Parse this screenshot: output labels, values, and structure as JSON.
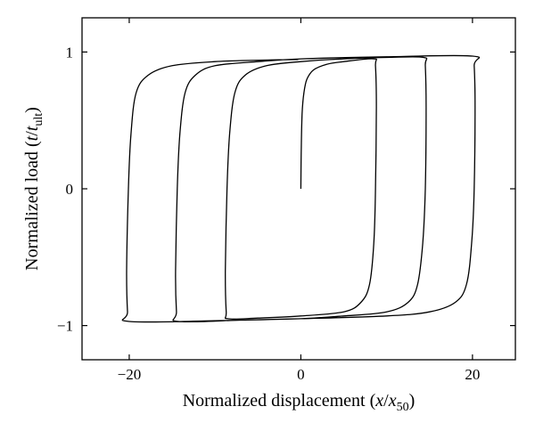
{
  "chart_data": {
    "type": "line",
    "title": "",
    "xlabel": {
      "main": "Normalized displacement (",
      "var": "x",
      "slash": "/",
      "sub_base": "x",
      "sub": "50",
      "close": ")"
    },
    "ylabel": {
      "main": "Normalized load (",
      "var": "t",
      "slash": "/",
      "sub_base": "t",
      "sub": "ult",
      "close": ")"
    },
    "xlim": [
      -25.5,
      25.0
    ],
    "ylim": [
      -1.25,
      1.25
    ],
    "x_ticks": [
      -20,
      0,
      20
    ],
    "x_tick_labels": [
      "−20",
      "0",
      "20"
    ],
    "y_ticks": [
      -1,
      0,
      1
    ],
    "y_tick_labels": [
      "−1",
      "0",
      "1"
    ],
    "grid": false,
    "legend": "none",
    "series": [
      {
        "values": [
          [
            0,
            0
          ],
          [
            0.05,
            0.3
          ],
          [
            0.15,
            0.55
          ],
          [
            0.35,
            0.7
          ],
          [
            0.7,
            0.8
          ],
          [
            1.5,
            0.87
          ],
          [
            3,
            0.91
          ],
          [
            5,
            0.93
          ],
          [
            8.5,
            0.95
          ],
          [
            8.7,
            0.9
          ],
          [
            8.8,
            0.6
          ],
          [
            8.7,
            0.0
          ],
          [
            8.5,
            -0.4
          ],
          [
            8.0,
            -0.7
          ],
          [
            7,
            -0.83
          ],
          [
            5,
            -0.9
          ],
          [
            0,
            -0.93
          ],
          [
            -5,
            -0.945
          ],
          [
            -8.5,
            -0.95
          ],
          [
            -8.7,
            -0.9
          ],
          [
            -8.8,
            -0.6
          ],
          [
            -8.6,
            0.0
          ],
          [
            -8.3,
            0.4
          ],
          [
            -7.7,
            0.7
          ],
          [
            -6.5,
            0.83
          ],
          [
            -4,
            0.9
          ],
          [
            0,
            0.93
          ],
          [
            5,
            0.95
          ],
          [
            10,
            0.96
          ],
          [
            14.3,
            0.96
          ],
          [
            14.5,
            0.9
          ],
          [
            14.6,
            0.6
          ],
          [
            14.5,
            0.0
          ],
          [
            14.2,
            -0.4
          ],
          [
            13.6,
            -0.7
          ],
          [
            12.5,
            -0.83
          ],
          [
            10,
            -0.9
          ],
          [
            5,
            -0.93
          ],
          [
            0,
            -0.95
          ],
          [
            -7,
            -0.96
          ],
          [
            -14.3,
            -0.97
          ],
          [
            -14.5,
            -0.9
          ],
          [
            -14.6,
            -0.6
          ],
          [
            -14.4,
            0.0
          ],
          [
            -14.1,
            0.4
          ],
          [
            -13.5,
            0.7
          ],
          [
            -12.3,
            0.83
          ],
          [
            -10,
            0.9
          ],
          [
            -5,
            0.93
          ],
          [
            0,
            0.95
          ],
          [
            10,
            0.965
          ],
          [
            20,
            0.97
          ],
          [
            20.2,
            0.9
          ],
          [
            20.3,
            0.6
          ],
          [
            20.2,
            0.0
          ],
          [
            19.9,
            -0.4
          ],
          [
            19.3,
            -0.7
          ],
          [
            18,
            -0.83
          ],
          [
            15,
            -0.9
          ],
          [
            10,
            -0.93
          ],
          [
            0,
            -0.95
          ],
          [
            -10,
            -0.965
          ],
          [
            -20,
            -0.97
          ],
          [
            -20.2,
            -0.9
          ],
          [
            -20.3,
            -0.6
          ],
          [
            -20.1,
            0.0
          ],
          [
            -19.8,
            0.4
          ],
          [
            -19.2,
            0.7
          ],
          [
            -17.8,
            0.83
          ],
          [
            -15,
            0.9
          ],
          [
            -10,
            0.93
          ],
          [
            -5,
            0.94
          ],
          [
            -0.3,
            0.945
          ]
        ]
      }
    ]
  }
}
